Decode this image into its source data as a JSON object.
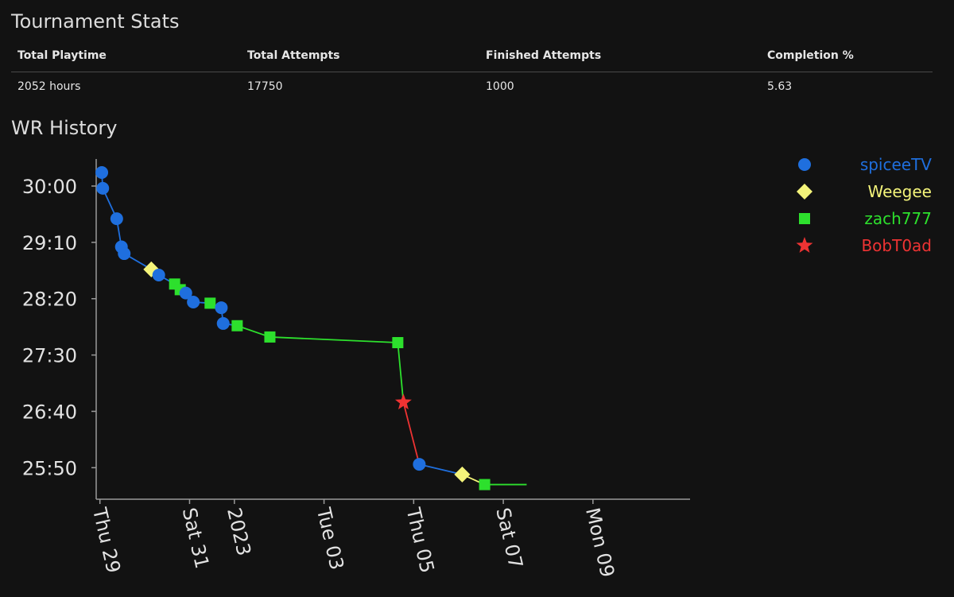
{
  "stats": {
    "title": "Tournament Stats",
    "headers": [
      "Total Playtime",
      "Total Attempts",
      "Finished Attempts",
      "Completion %"
    ],
    "values": [
      "2052 hours",
      "17750",
      "1000",
      "5.63"
    ]
  },
  "wr_history": {
    "title": "WR History"
  },
  "chart_data": {
    "type": "line",
    "title": "WR History",
    "xlabel": "",
    "ylabel": "",
    "x_tick_labels": [
      "Thu 29",
      "Sat 31",
      "2023",
      "Tue 03",
      "Thu 05",
      "Sat 07",
      "Mon 09"
    ],
    "x_ticks": [
      "2022-12-29",
      "2022-12-31",
      "2023-01-01",
      "2023-01-03",
      "2023-01-05",
      "2023-01-07",
      "2023-01-09"
    ],
    "y_tick_labels": [
      "30:00",
      "29:10",
      "28:20",
      "27:30",
      "26:40",
      "25:50"
    ],
    "y_ticks": [
      1800,
      1750,
      1700,
      1650,
      1600,
      1550
    ],
    "xlim": [
      "2022-12-28T22:00",
      "2023-01-11T04:00"
    ],
    "ylim": [
      1522,
      1824
    ],
    "grid": false,
    "legend_position": "top-right",
    "players": [
      {
        "name": "spiceeTV",
        "color": "#1f6fde",
        "marker": "circle"
      },
      {
        "name": "Weegee",
        "color": "#f4f47a",
        "marker": "diamond"
      },
      {
        "name": "zach777",
        "color": "#2de02d",
        "marker": "square"
      },
      {
        "name": "BobT0ad",
        "color": "#ee3333",
        "marker": "star"
      }
    ],
    "points": [
      {
        "x": "2022-12-29T01:00",
        "y": 1812,
        "player": "spiceeTV"
      },
      {
        "x": "2022-12-29T01:30",
        "y": 1798,
        "player": "spiceeTV"
      },
      {
        "x": "2022-12-29T09:00",
        "y": 1771,
        "player": "spiceeTV"
      },
      {
        "x": "2022-12-29T11:30",
        "y": 1746,
        "player": "spiceeTV"
      },
      {
        "x": "2022-12-29T13:00",
        "y": 1740,
        "player": "spiceeTV"
      },
      {
        "x": "2022-12-30T03:30",
        "y": 1726,
        "player": "Weegee"
      },
      {
        "x": "2022-12-30T07:30",
        "y": 1721,
        "player": "spiceeTV"
      },
      {
        "x": "2022-12-30T16:00",
        "y": 1713,
        "player": "zach777"
      },
      {
        "x": "2022-12-30T19:00",
        "y": 1708,
        "player": "zach777"
      },
      {
        "x": "2022-12-30T22:00",
        "y": 1705,
        "player": "spiceeTV"
      },
      {
        "x": "2022-12-31T02:00",
        "y": 1697,
        "player": "spiceeTV"
      },
      {
        "x": "2022-12-31T11:00",
        "y": 1696,
        "player": "zach777"
      },
      {
        "x": "2022-12-31T17:00",
        "y": 1692,
        "player": "spiceeTV"
      },
      {
        "x": "2022-12-31T18:00",
        "y": 1678,
        "player": "spiceeTV"
      },
      {
        "x": "2023-01-01T01:30",
        "y": 1676,
        "player": "zach777"
      },
      {
        "x": "2023-01-01T19:00",
        "y": 1666,
        "player": "zach777"
      },
      {
        "x": "2023-01-04T15:30",
        "y": 1661,
        "player": "zach777"
      },
      {
        "x": "2023-01-04T18:30",
        "y": 1608,
        "player": "BobT0ad"
      },
      {
        "x": "2023-01-05T03:00",
        "y": 1553,
        "player": "spiceeTV"
      },
      {
        "x": "2023-01-06T02:00",
        "y": 1544,
        "player": "Weegee"
      },
      {
        "x": "2023-01-06T14:00",
        "y": 1535,
        "player": "zach777"
      }
    ],
    "extends_to": "2023-01-07T12:30"
  }
}
